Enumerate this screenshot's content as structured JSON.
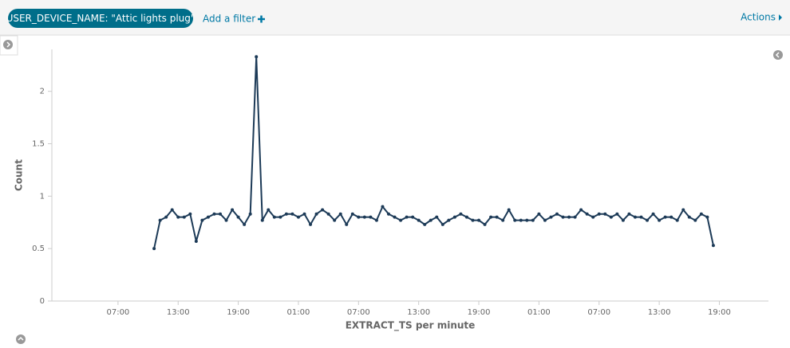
{
  "filter_bar": {
    "filter": "USER_DEVICE_NAME: \"Attic lights plug\"",
    "add_filter": "Add a filter",
    "actions": "Actions"
  },
  "chart_data": {
    "type": "line",
    "x_label": "EXTRACT_TS per minute",
    "y_label": "Count",
    "color": "#1c3a57",
    "x": [
      10.6,
      11.2,
      11.8,
      12.4,
      13,
      13.6,
      14.2,
      14.8,
      15.4,
      16,
      16.6,
      17.2,
      17.8,
      18.4,
      19,
      19.6,
      20.2,
      20.8,
      21.4,
      22,
      22.6,
      23.2,
      23.8,
      24.4,
      25,
      25.6,
      26.2,
      26.8,
      27.4,
      28,
      28.6,
      29.2,
      29.8,
      30.4,
      31,
      31.6,
      32.2,
      32.8,
      33.4,
      34,
      34.6,
      35.2,
      35.8,
      36.4,
      37,
      37.6,
      38.2,
      38.8,
      39.4,
      40,
      40.6,
      41.2,
      41.8,
      42.4,
      43,
      43.6,
      44.2,
      44.8,
      45.4,
      46,
      46.6,
      47.2,
      47.8,
      48.4,
      49,
      49.6,
      50.2,
      50.8,
      51.4,
      52,
      52.6,
      53.2,
      53.8,
      54.4,
      55,
      55.6,
      56.2,
      56.8,
      57.4,
      58,
      58.6,
      59.2,
      59.8,
      60.4,
      61,
      61.6,
      62.2,
      62.8,
      63.4,
      64,
      64.6,
      65.2,
      65.8,
      66.4
    ],
    "values": [
      0.5,
      0.77,
      0.8,
      0.87,
      0.8,
      0.8,
      0.83,
      0.57,
      0.77,
      0.8,
      0.83,
      0.83,
      0.77,
      0.87,
      0.8,
      0.73,
      0.83,
      2.33,
      0.77,
      0.87,
      0.8,
      0.8,
      0.83,
      0.83,
      0.8,
      0.83,
      0.73,
      0.83,
      0.87,
      0.83,
      0.77,
      0.83,
      0.73,
      0.83,
      0.8,
      0.8,
      0.8,
      0.77,
      0.9,
      0.83,
      0.8,
      0.77,
      0.8,
      0.8,
      0.77,
      0.73,
      0.77,
      0.8,
      0.73,
      0.77,
      0.8,
      0.83,
      0.8,
      0.77,
      0.77,
      0.73,
      0.8,
      0.8,
      0.77,
      0.87,
      0.77,
      0.77,
      0.77,
      0.77,
      0.83,
      0.77,
      0.8,
      0.83,
      0.8,
      0.8,
      0.8,
      0.87,
      0.83,
      0.8,
      0.83,
      0.83,
      0.8,
      0.83,
      0.77,
      0.83,
      0.8,
      0.8,
      0.77,
      0.83,
      0.77,
      0.8,
      0.8,
      0.77,
      0.87,
      0.8,
      0.77,
      0.83,
      0.8,
      0.53
    ],
    "xlim": [
      0.4,
      71.9
    ],
    "xticks": [
      {
        "value": 7,
        "label": "07:00"
      },
      {
        "value": 13,
        "label": "13:00"
      },
      {
        "value": 19,
        "label": "19:00"
      },
      {
        "value": 25,
        "label": "01:00"
      },
      {
        "value": 31,
        "label": "07:00"
      },
      {
        "value": 37,
        "label": "13:00"
      },
      {
        "value": 43,
        "label": "19:00"
      },
      {
        "value": 49,
        "label": "01:00"
      },
      {
        "value": 55,
        "label": "07:00"
      },
      {
        "value": 61,
        "label": "13:00"
      },
      {
        "value": 67,
        "label": "19:00"
      }
    ],
    "ylim": [
      0,
      2.4
    ],
    "yticks": [
      0,
      0.5,
      1,
      1.5,
      2
    ],
    "grid": false
  }
}
